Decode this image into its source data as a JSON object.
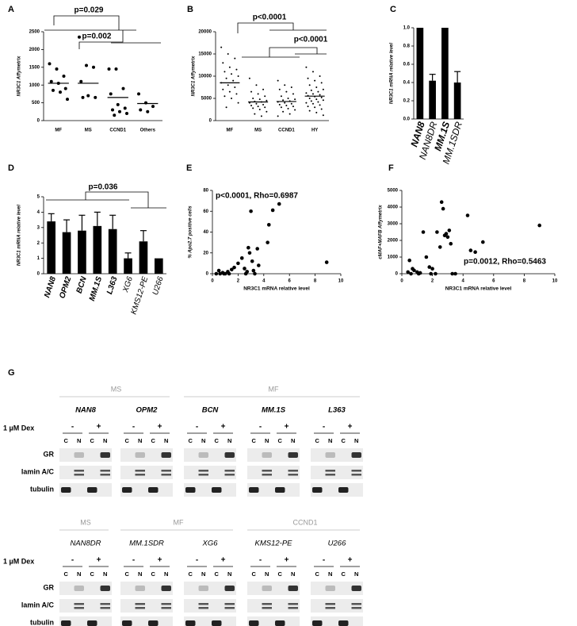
{
  "chart_data": [
    {
      "type": "dot",
      "panel": "A",
      "y_label": "NR3C1 Affymetrix",
      "categories": [
        "MF",
        "MS",
        "CCND1",
        "Others"
      ],
      "points": [
        [
          1600,
          1450,
          1250,
          1100,
          1050,
          900,
          850,
          800,
          600
        ],
        [
          2350,
          1550,
          1500,
          1100,
          700,
          650,
          650
        ],
        [
          1450,
          1450,
          900,
          750,
          450,
          350,
          300,
          250,
          200,
          150
        ],
        [
          750,
          500,
          400,
          300,
          250
        ]
      ],
      "medians": [
        1050,
        1050,
        650,
        480
      ],
      "ylim": [
        0,
        2500
      ],
      "yticks": [
        0,
        500,
        1000,
        1500,
        2000,
        2500
      ],
      "annotations": [
        "p=0.029",
        "p=0.002"
      ]
    },
    {
      "type": "dot",
      "panel": "B",
      "y_label": "NR3C1 Affymetrix",
      "categories": [
        "MF",
        "MS",
        "CCND1",
        "HY"
      ],
      "points": [
        [
          16500,
          15000,
          14000,
          13000,
          12000,
          11500,
          11000,
          10500,
          10000,
          9500,
          9000,
          8500,
          8000,
          7500,
          7000,
          6500,
          6000,
          5500,
          5000,
          4000,
          3000
        ],
        [
          9500,
          8000,
          7000,
          6500,
          6000,
          5500,
          5000,
          4800,
          4500,
          4300,
          4200,
          4000,
          3800,
          3600,
          3400,
          3200,
          3000,
          2800,
          2500,
          2000,
          1500,
          1000
        ],
        [
          9000,
          8000,
          7500,
          7000,
          6500,
          6000,
          5500,
          5000,
          4800,
          4600,
          4400,
          4200,
          4000,
          3800,
          3600,
          3400,
          3200,
          3000,
          2700,
          2400,
          2000,
          1500,
          1000
        ],
        [
          12000,
          11000,
          10000,
          9500,
          9000,
          8500,
          8000,
          7500,
          7000,
          6800,
          6500,
          6200,
          6000,
          5800,
          5600,
          5400,
          5200,
          5000,
          4800,
          4600,
          4400,
          4200,
          4000,
          3800,
          3500,
          3200,
          3000,
          2600,
          2200,
          1800,
          1200
        ]
      ],
      "medians": [
        8500,
        4200,
        4300,
        5500
      ],
      "ylim": [
        0,
        20000
      ],
      "yticks": [
        0,
        5000,
        10000,
        15000,
        20000
      ],
      "annotations": [
        "p<0.0001",
        "p<0.0001"
      ]
    },
    {
      "type": "bar",
      "panel": "C",
      "y_label": "NR3C1 mRNA relative level",
      "categories": [
        "NAN8",
        "NAN8DR",
        "MM.1S",
        "MM.1SDR"
      ],
      "values": [
        1,
        0.42,
        1,
        0.4
      ],
      "errors": [
        null,
        0.07,
        null,
        0.12
      ],
      "color": "#000000",
      "ylim": [
        0,
        1
      ],
      "yticks": [
        {
          "value": 0,
          "label": "0.0"
        },
        {
          "value": 0.2,
          "label": "0.2"
        },
        {
          "value": 0.4,
          "label": "0.4"
        },
        {
          "value": 0.6,
          "label": "0.6"
        },
        {
          "value": 0.8,
          "label": "0.8"
        },
        {
          "value": 1,
          "label": "1.0"
        }
      ]
    },
    {
      "type": "bar",
      "panel": "D",
      "y_label": "NR3C1 mRNA relative level",
      "categories": [
        "NAN8",
        "OPM2",
        "BCN",
        "MM.1S",
        "L363",
        "XG6",
        "KMS12-PE",
        "U266"
      ],
      "values": [
        3.4,
        2.7,
        2.8,
        3.1,
        2.9,
        1.0,
        2.1,
        1.0
      ],
      "errors": [
        0.5,
        0.8,
        1.0,
        0.9,
        0.9,
        0.35,
        0.7,
        null
      ],
      "color": "#000000",
      "ylim": [
        0,
        5
      ],
      "yticks": [
        0,
        1,
        2,
        3,
        4,
        5
      ],
      "annotations": [
        "p=0.036"
      ]
    },
    {
      "type": "scatter",
      "panel": "E",
      "y_label": "% Apo2.7 positive cells",
      "x_label": "NR3C1 mRNA relative level",
      "x": [
        0.3,
        0.5,
        0.6,
        0.8,
        1,
        1.2,
        1.5,
        1.7,
        2,
        2.3,
        2.5,
        2.7,
        2.8,
        2.9,
        3.0,
        3.1,
        3.2,
        3.3,
        3.5,
        3.6,
        4.3,
        4.4,
        4.7,
        5.2,
        8.9,
        2.6,
        1.3,
        0.9
      ],
      "values": [
        0,
        3,
        0,
        1,
        0,
        2,
        4,
        6,
        10,
        15,
        5,
        2,
        25,
        20,
        60,
        12,
        3,
        0,
        24,
        8,
        30,
        47,
        61,
        67,
        11,
        0,
        0,
        0
      ],
      "xlim": [
        0,
        10
      ],
      "xticks": [
        0,
        2,
        4,
        6,
        8,
        10
      ],
      "ylim": [
        0,
        80
      ],
      "yticks": [
        0,
        20,
        40,
        60,
        80
      ],
      "annotations": [
        "p<0.0001, Rho=0.6987"
      ]
    },
    {
      "type": "scatter",
      "panel": "F",
      "y_label": "cMAF+MAFB Affymetrix",
      "x_label": "NR3C1 mRNA relative level",
      "x": [
        0.4,
        0.5,
        0.6,
        0.7,
        0.8,
        1,
        1.1,
        1.2,
        1.4,
        1.6,
        1.8,
        2,
        2.3,
        2.5,
        2.6,
        2.7,
        2.8,
        2.9,
        3.0,
        3.1,
        3.2,
        3.3,
        3.5,
        4.3,
        4.5,
        4.8,
        5.3,
        9,
        1.9,
        2.2
      ],
      "values": [
        100,
        800,
        0,
        300,
        200,
        100,
        0,
        50,
        2500,
        1000,
        400,
        300,
        2500,
        1600,
        4300,
        3900,
        2300,
        2400,
        2200,
        2600,
        1800,
        0,
        0,
        3500,
        1400,
        1300,
        1900,
        2900,
        0,
        0
      ],
      "xlim": [
        0,
        10
      ],
      "xticks": [
        0,
        2,
        4,
        6,
        8,
        10
      ],
      "ylim": [
        0,
        5000
      ],
      "yticks": [
        0,
        1000,
        2000,
        3000,
        4000,
        5000
      ],
      "annotations": [
        "p=0.0012, Rho=0.5463"
      ]
    }
  ],
  "blot": {
    "panel": "G",
    "dex_label": "1 µM Dex",
    "treatments": [
      "-",
      "+"
    ],
    "fractions": [
      "C",
      "N"
    ],
    "rows": [
      "GR",
      "lamin A/C",
      "tubulin"
    ],
    "blocks": [
      {
        "groups": [
          {
            "label": "MS",
            "cells": [
              "NAN8",
              "OPM2"
            ]
          },
          {
            "label": "MF",
            "cells": [
              "BCN",
              "MM.1S",
              "L363"
            ]
          }
        ]
      },
      {
        "groups": [
          {
            "label": "MS",
            "cells": [
              "NAN8DR"
            ]
          },
          {
            "label": "MF",
            "cells": [
              "MM.1SDR",
              "XG6"
            ]
          },
          {
            "label": "CCND1",
            "cells": [
              "KMS12-PE",
              "U266"
            ]
          }
        ]
      }
    ]
  }
}
